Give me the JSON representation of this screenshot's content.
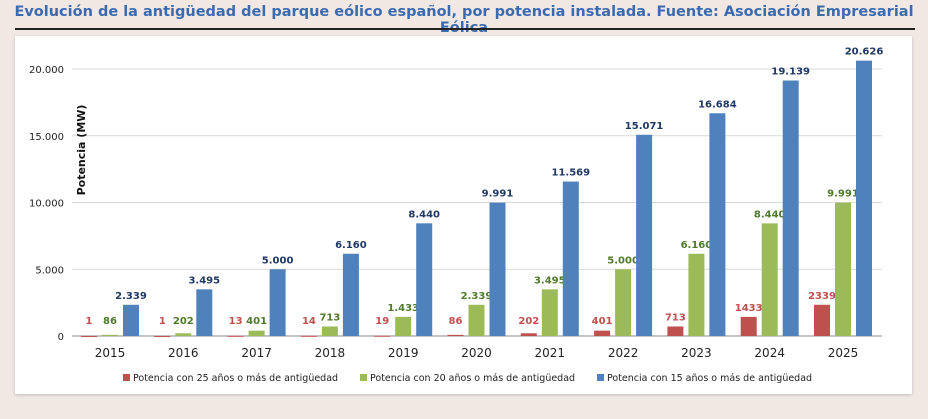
{
  "title": "Evolución de la antigüedad del parque eólico español, por potencia instalada. Fuente: Asociación Empresarial Eólica",
  "chart_data": {
    "type": "bar",
    "title": "Evolución de la antigüedad del parque eólico español, por potencia instalada. Fuente: Asociación Empresarial Eólica",
    "xlabel": "",
    "ylabel": "Potencia (MW)",
    "ylim": [
      0,
      20000
    ],
    "yticks": [
      0,
      5000,
      10000,
      15000,
      20000
    ],
    "ytick_labels": [
      "0",
      "5.000",
      "10.000",
      "15.000",
      "20.000"
    ],
    "grid": true,
    "legend_position": "bottom",
    "categories": [
      "2015",
      "2016",
      "2017",
      "2018",
      "2019",
      "2020",
      "2021",
      "2022",
      "2023",
      "2024",
      "2025"
    ],
    "series": [
      {
        "name": "Potencia con 25 años o más de antigüedad",
        "color": "#c0504d",
        "values": [
          1,
          1,
          13,
          14,
          19,
          86,
          202,
          401,
          713,
          1433,
          2339
        ],
        "labels": [
          "1",
          "1",
          "13",
          "14",
          "19",
          "86",
          "202",
          "401",
          "713",
          "1433",
          "2339"
        ]
      },
      {
        "name": "Potencia con 20 años o más de antigüedad",
        "color": "#9bbb59",
        "values": [
          86,
          202,
          401,
          713,
          1433,
          2339,
          3495,
          5000,
          6160,
          8440,
          9991
        ],
        "labels": [
          "86",
          "202",
          "401",
          "713",
          "1.433",
          "2.339",
          "3.495",
          "5.000",
          "6.160",
          "8.440",
          "9.991"
        ]
      },
      {
        "name": "Potencia con 15 años o más de antigüedad",
        "color": "#4f81bd",
        "values": [
          2339,
          3495,
          5000,
          6160,
          8440,
          9991,
          11569,
          15071,
          16684,
          19139,
          20626
        ],
        "labels": [
          "2.339",
          "3.495",
          "5.000",
          "6.160",
          "8.440",
          "9.991",
          "11.569",
          "15.071",
          "16.684",
          "19.139",
          "20.626"
        ]
      }
    ],
    "label_colors": [
      "#c0504d",
      "#4e7a2a",
      "#1f3864"
    ]
  }
}
